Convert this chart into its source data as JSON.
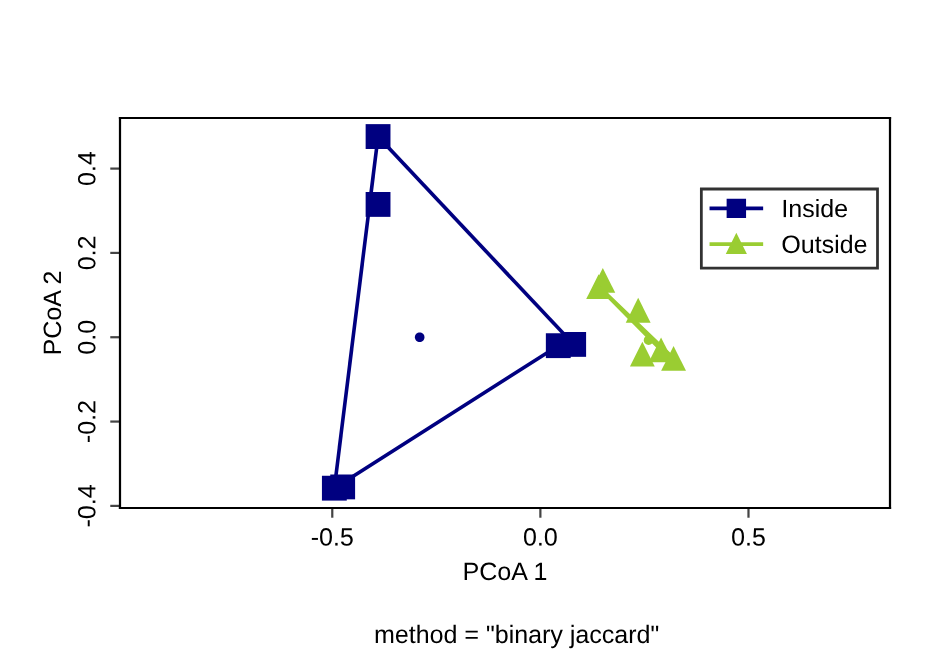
{
  "chart_data": {
    "type": "scatter",
    "xlabel": "PCoA 1",
    "ylabel": "PCoA 2",
    "annotations": [
      "method = \"binary jaccard\""
    ],
    "xlim": [
      -1.01,
      0.84
    ],
    "ylim": [
      -0.405,
      0.52
    ],
    "xticks": [
      -0.5,
      {
        "value": 0,
        "label": "0.0"
      },
      0.5
    ],
    "yticks": [
      -0.4,
      -0.2,
      {
        "value": 0,
        "label": "0.0"
      },
      0.2,
      0.4
    ],
    "grid": false,
    "legend": "top right",
    "series": [
      {
        "type": "line",
        "color": "#000080",
        "marker": "none",
        "x": [
          -0.495,
          -0.39
        ],
        "values": [
          -0.358,
          0.476
        ]
      },
      {
        "type": "line",
        "color": "#000080",
        "marker": "none",
        "x": [
          -0.39,
          0.08
        ],
        "values": [
          0.476,
          -0.017
        ]
      },
      {
        "type": "line",
        "color": "#000080",
        "marker": "none",
        "x": [
          -0.495,
          0.043
        ],
        "values": [
          -0.358,
          -0.02
        ]
      },
      {
        "type": "line",
        "color": "#9acd32",
        "marker": "none",
        "x": [
          0.14,
          0.32
        ],
        "values": [
          0.12,
          -0.05
        ]
      },
      {
        "type": "line",
        "color": "#9acd32",
        "marker": "none",
        "x": [
          0.14,
          0.29
        ],
        "values": [
          0.12,
          -0.03
        ]
      },
      {
        "type": "scatter",
        "name": "Inside",
        "color": "#000080",
        "marker": "square",
        "x": [
          -0.39,
          -0.39,
          -0.495,
          -0.475,
          0.043,
          0.08
        ],
        "values": [
          0.476,
          0.315,
          -0.358,
          -0.355,
          -0.02,
          -0.017
        ]
      },
      {
        "type": "scatter",
        "name": "Outside",
        "color": "#9acd32",
        "marker": "triangle",
        "x": [
          0.14,
          0.15,
          0.235,
          0.245,
          0.29,
          0.32
        ],
        "values": [
          0.12,
          0.135,
          0.064,
          -0.04,
          -0.03,
          -0.05
        ]
      },
      {
        "color": "#000080",
        "marker": "circle",
        "x": [
          -0.29
        ],
        "values": [
          0.0
        ]
      },
      {
        "color": "#9acd32",
        "marker": "circle",
        "x": [
          0.26
        ],
        "values": [
          -0.007
        ]
      }
    ]
  }
}
